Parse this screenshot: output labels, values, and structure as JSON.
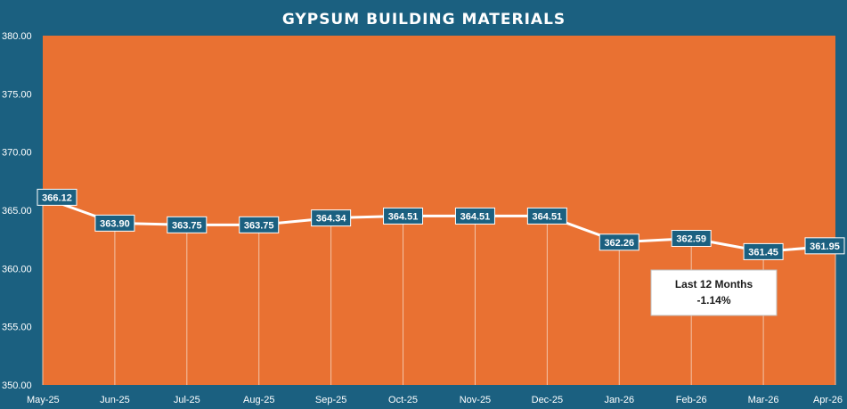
{
  "chart_data": {
    "type": "line",
    "title": "GYPSUM BUILDING MATERIALS",
    "categories": [
      "May-25",
      "Jun-25",
      "Jul-25",
      "Aug-25",
      "Sep-25",
      "Oct-25",
      "Nov-25",
      "Dec-25",
      "Jan-26",
      "Feb-26",
      "Mar-26",
      "Apr-26"
    ],
    "values": [
      366.12,
      363.9,
      363.75,
      363.75,
      364.34,
      364.51,
      364.51,
      364.51,
      362.26,
      362.59,
      361.45,
      361.95
    ],
    "value_labels": [
      "366.12",
      "363.90",
      "363.75",
      "363.75",
      "364.34",
      "364.51",
      "364.51",
      "364.51",
      "362.26",
      "362.59",
      "361.45",
      "361.95"
    ],
    "ylim": [
      350,
      380
    ],
    "yticks": [
      "350.00",
      "355.00",
      "360.00",
      "365.00",
      "370.00",
      "375.00",
      "380.00"
    ],
    "xlabel": "",
    "ylabel": "",
    "grid": false,
    "drop_lines": true,
    "annotation": {
      "line1": "Last 12 Months",
      "line2": "-1.14%"
    }
  },
  "colors": {
    "background": "#1b6080",
    "plot_area": "#e97132",
    "line": "#ffffff",
    "label_box": "#1b6080",
    "annotation_box": "#ffffff",
    "text": "#ffffff"
  }
}
